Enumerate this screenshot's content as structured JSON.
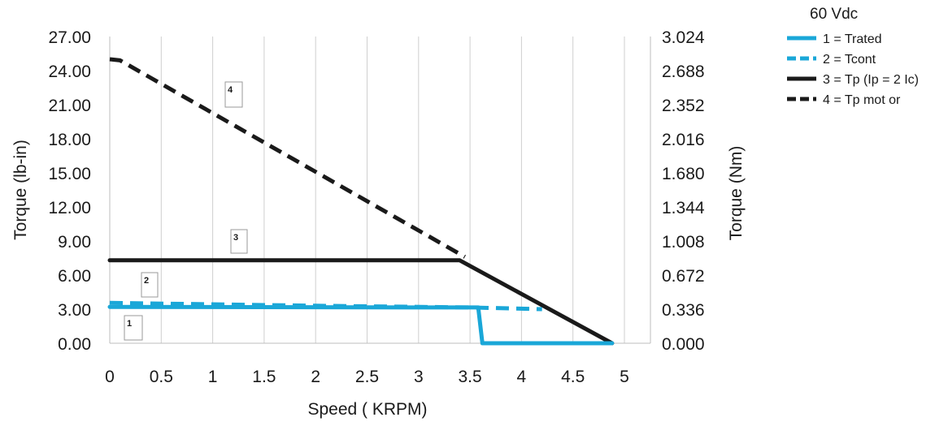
{
  "chart_data": {
    "type": "line",
    "xlabel": "Speed ( KRPM)",
    "ylabel": "Torque (lb-in)",
    "y2label": "Torque (Nm)",
    "xlim": [
      0,
      5
    ],
    "ylim": [
      0,
      27
    ],
    "y2lim": [
      0,
      3.024
    ],
    "x_ticks": [
      "0",
      "0.5",
      "1",
      "1.5",
      "2",
      "2.5",
      "3",
      "3.5",
      "4",
      "4.5",
      "5"
    ],
    "y_ticks": [
      "0.00",
      "3.00",
      "6.00",
      "9.00",
      "12.00",
      "15.00",
      "18.00",
      "21.00",
      "24.00",
      "27.00"
    ],
    "y2_ticks": [
      "0.000",
      "0.336",
      "0.672",
      "1.008",
      "1.344",
      "1.680",
      "2.016",
      "2.352",
      "2.688",
      "3.024"
    ],
    "grid": {
      "vertical": true,
      "horizontal": false
    },
    "legend": {
      "title": "60 Vdc",
      "placement": "top-right outside",
      "entries": [
        "1 = Trated",
        "2 = Tcont",
        "3 = Tp (Ip = 2 Ic)",
        "4 = Tp mot or"
      ]
    },
    "series": [
      {
        "name": "1 = Trated",
        "label": "1",
        "color": "#1aa7d8",
        "style": "solid",
        "points": [
          [
            0,
            3.2
          ],
          [
            3.0,
            3.15
          ],
          [
            3.58,
            3.15
          ],
          [
            3.62,
            0.0
          ],
          [
            4.88,
            0.0
          ]
        ]
      },
      {
        "name": "2 = Tcont",
        "label": "2",
        "color": "#1aa7d8",
        "style": "dashed",
        "points": [
          [
            0,
            3.55
          ],
          [
            2.0,
            3.3
          ],
          [
            3.5,
            3.15
          ],
          [
            4.2,
            3.0
          ]
        ]
      },
      {
        "name": "3 = Tp (Ip = 2 Ic)",
        "label": "3",
        "color": "#1a1a1a",
        "style": "solid",
        "points": [
          [
            0,
            7.3
          ],
          [
            3.4,
            7.3
          ],
          [
            4.88,
            0.0
          ]
        ]
      },
      {
        "name": "4 = Tp mot or",
        "label": "4",
        "color": "#1a1a1a",
        "style": "dashed",
        "points": [
          [
            0,
            25.0
          ],
          [
            0.1,
            24.9
          ],
          [
            3.45,
            7.6
          ]
        ]
      }
    ],
    "annotations": [
      "1",
      "2",
      "3",
      "4"
    ]
  }
}
